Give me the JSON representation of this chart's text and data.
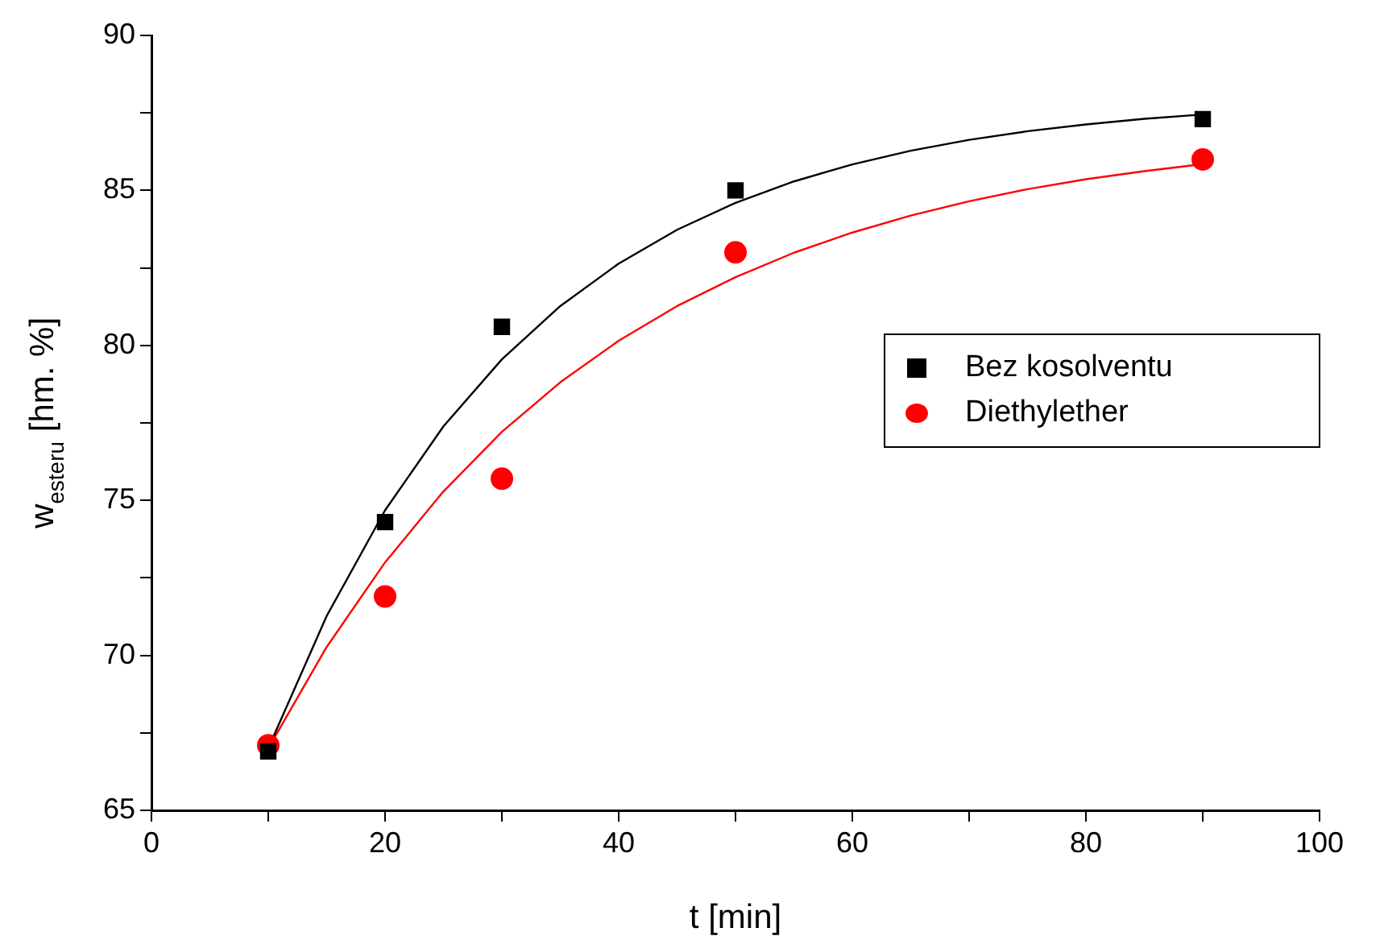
{
  "chart_data": {
    "type": "scatter",
    "xlabel": "t [min]",
    "ylabel": "w$_{esteru}$ [hm. %]",
    "xlim": [
      0,
      100
    ],
    "xticks": [
      0,
      {
        "value": 10,
        "label": null
      },
      20,
      {
        "value": 30,
        "label": null
      },
      40,
      {
        "value": 50,
        "label": null
      },
      60,
      {
        "value": 70,
        "label": null
      },
      80,
      {
        "value": 90,
        "label": null
      },
      100
    ],
    "ylim": [
      65,
      90
    ],
    "yticks": [
      65,
      {
        "value": 67.5,
        "label": null
      },
      70,
      {
        "value": 72.5,
        "label": null
      },
      75,
      {
        "value": 77.5,
        "label": null
      },
      80,
      {
        "value": 82.5,
        "label": null
      },
      85,
      {
        "value": 87.5,
        "label": null
      },
      90
    ],
    "grid": false,
    "legend": "right",
    "series": [
      {
        "name": "Bez kosolventu",
        "color": "#000000",
        "marker": "square",
        "x": [
          10,
          20,
          30,
          50,
          90
        ],
        "values": [
          66.9,
          74.3,
          80.6,
          85.0,
          87.3
        ]
      },
      {
        "name": "Diethylether",
        "color": "#ff0000",
        "marker": "circle",
        "x": [
          10,
          20,
          30,
          50,
          90
        ],
        "values": [
          67.1,
          71.9,
          75.7,
          83.0,
          86.0
        ]
      },
      {
        "type": "line",
        "color": "#000000",
        "marker": "none",
        "line_style": "solid",
        "x": [
          10,
          15,
          20,
          25,
          30,
          35,
          40,
          45,
          50,
          55,
          60,
          65,
          70,
          75,
          80,
          85,
          90
        ],
        "values": [
          67.0,
          71.27,
          74.68,
          77.39,
          79.55,
          81.27,
          82.64,
          83.73,
          84.6,
          85.29,
          85.84,
          86.28,
          86.63,
          86.91,
          87.13,
          87.31,
          87.45
        ]
      },
      {
        "type": "line",
        "color": "#ff0000",
        "marker": "none",
        "line_style": "solid",
        "x": [
          10,
          15,
          20,
          25,
          30,
          35,
          40,
          45,
          50,
          55,
          60,
          65,
          70,
          75,
          80,
          85,
          90
        ],
        "values": [
          67.0,
          70.27,
          73.0,
          75.29,
          77.21,
          78.81,
          80.15,
          81.27,
          82.2,
          82.99,
          83.64,
          84.19,
          84.65,
          85.04,
          85.36,
          85.62,
          85.85
        ]
      }
    ]
  }
}
